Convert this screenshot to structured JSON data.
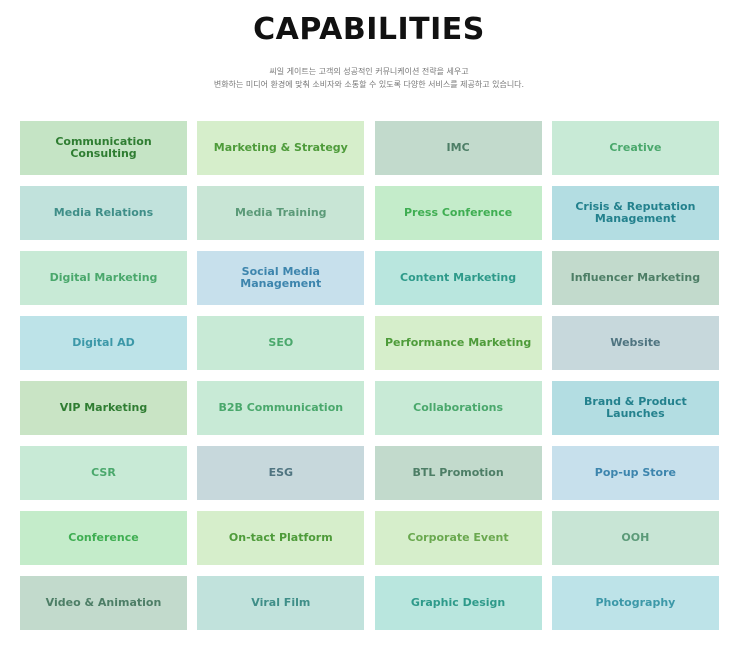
{
  "header": {
    "title": "CAPABILITIES",
    "subtitle_line1": "씨일 게이트는 고객의 성공적인 커뮤니케이션 전략을 세우고",
    "subtitle_line2": "변화하는 미디어 환경에 맞춰 소비자와 소통할 수 있도록 다양한 서비스를 제공하고 있습니다."
  },
  "capabilities": [
    {
      "label": "Communication Consulting",
      "bg": "#c5e4c5",
      "fg": "#2f7d32"
    },
    {
      "label": "Marketing & Strategy",
      "bg": "#d6eecb",
      "fg": "#4e9b3a"
    },
    {
      "label": "IMC",
      "bg": "#c2dacc",
      "fg": "#4d7e66"
    },
    {
      "label": "Creative",
      "bg": "#c8ead6",
      "fg": "#4aa86c"
    },
    {
      "label": "Media Relations",
      "bg": "#c1e2dc",
      "fg": "#3f8e88"
    },
    {
      "label": "Media Training",
      "bg": "#c8e5d5",
      "fg": "#5b9a78"
    },
    {
      "label": "Press Conference",
      "bg": "#c4ecca",
      "fg": "#3fae52"
    },
    {
      "label": "Crisis & Reputation Management",
      "bg": "#b3dde2",
      "fg": "#23818d"
    },
    {
      "label": "Digital Marketing",
      "bg": "#c8ead6",
      "fg": "#4aa86c"
    },
    {
      "label": "Social Media Management",
      "bg": "#c7e0ec",
      "fg": "#3d85ad"
    },
    {
      "label": "Content Marketing",
      "bg": "#b9e6de",
      "fg": "#2e9a8a"
    },
    {
      "label": "Influencer Marketing",
      "bg": "#c2dacc",
      "fg": "#4d7e66"
    },
    {
      "label": "Digital AD",
      "bg": "#bde3e8",
      "fg": "#3c98a8"
    },
    {
      "label": "SEO",
      "bg": "#c8ead6",
      "fg": "#4aa86c"
    },
    {
      "label": "Performance Marketing",
      "bg": "#d6eecb",
      "fg": "#4e9b3a"
    },
    {
      "label": "Website",
      "bg": "#c7d8dc",
      "fg": "#4f7480"
    },
    {
      "label": "VIP Marketing",
      "bg": "#c9e4c5",
      "fg": "#2f7d32"
    },
    {
      "label": "B2B Communication",
      "bg": "#c8ead6",
      "fg": "#4aa86c"
    },
    {
      "label": "Collaborations",
      "bg": "#c8ead6",
      "fg": "#4aa86c"
    },
    {
      "label": "Brand & Product Launches",
      "bg": "#b3dde2",
      "fg": "#23818d"
    },
    {
      "label": "CSR",
      "bg": "#c8ead6",
      "fg": "#4aa86c"
    },
    {
      "label": "ESG",
      "bg": "#c7d8dc",
      "fg": "#4f7480"
    },
    {
      "label": "BTL Promotion",
      "bg": "#c2dacc",
      "fg": "#4d7e66"
    },
    {
      "label": "Pop-up Store",
      "bg": "#c7e0ec",
      "fg": "#3d85ad"
    },
    {
      "label": "Conference",
      "bg": "#c4ecca",
      "fg": "#3fae52"
    },
    {
      "label": "On-tact Platform",
      "bg": "#d6eecb",
      "fg": "#4e9b3a"
    },
    {
      "label": "Corporate Event",
      "bg": "#d6eecb",
      "fg": "#6aa84f"
    },
    {
      "label": "OOH",
      "bg": "#c8e5d5",
      "fg": "#5b9a78"
    },
    {
      "label": "Video & Animation",
      "bg": "#c2dacc",
      "fg": "#4d7e66"
    },
    {
      "label": "Viral Film",
      "bg": "#c1e2dc",
      "fg": "#3f8e88"
    },
    {
      "label": "Graphic Design",
      "bg": "#b9e6de",
      "fg": "#2e9a8a"
    },
    {
      "label": "Photography",
      "bg": "#bde3e8",
      "fg": "#3c98a8"
    }
  ]
}
